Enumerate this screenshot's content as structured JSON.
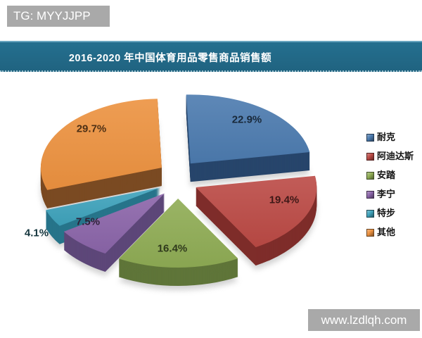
{
  "page": {
    "watermark_top": "TG: MYYJJPP",
    "watermark_bottom": "www.lzdlqh.com"
  },
  "colors": {
    "banner": "#206380",
    "banner_top_edge": "#69a5c0",
    "watermark_badge": "#a9a9a9",
    "legend_text": "#141414"
  },
  "chart_data": {
    "type": "pie",
    "style": "3d-exploded",
    "title": "2016-2020 年中国体育用品零售商品销售额",
    "unit": "%",
    "legend_position": "right",
    "slices": [
      {
        "label": "耐克",
        "value": 22.9,
        "color": "#4C7BAF",
        "side": "#27456B"
      },
      {
        "label": "阿迪达斯",
        "value": 19.4,
        "color": "#BB4A45",
        "side": "#7E2D2A"
      },
      {
        "label": "安踏",
        "value": 16.4,
        "color": "#8FAC54",
        "side": "#5F7539"
      },
      {
        "label": "李宁",
        "value": 7.5,
        "color": "#8B65A9",
        "side": "#5D4779"
      },
      {
        "label": "特步",
        "value": 4.1,
        "color": "#3FA3BC",
        "side": "#27748A"
      },
      {
        "label": "其他",
        "value": 29.7,
        "color": "#EC9240",
        "side": "#7A4A22"
      }
    ]
  }
}
